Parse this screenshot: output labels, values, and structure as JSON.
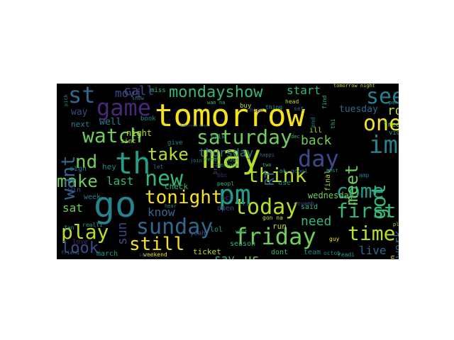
{
  "palette": {
    "yellow": "#f5e21c",
    "lime": "#b5de2b",
    "green": "#6ece58",
    "seagreen": "#35b779",
    "teal": "#1f9e89",
    "cyan": "#26828e",
    "blue": "#31688e",
    "indigo": "#3e4989",
    "purple": "#482878",
    "violet": "#440154"
  },
  "words": [
    {
      "text": "tomorrow",
      "color": "yellow"
    },
    {
      "text": "may",
      "color": "lime"
    },
    {
      "text": "go",
      "color": "cyan"
    },
    {
      "text": "th",
      "color": "teal"
    },
    {
      "text": "friday",
      "color": "green"
    },
    {
      "text": "saturday",
      "color": "green"
    },
    {
      "text": "sunday",
      "color": "blue"
    },
    {
      "text": "watch",
      "color": "green"
    },
    {
      "text": "day",
      "color": "indigo"
    },
    {
      "text": "game",
      "color": "purple"
    },
    {
      "text": "st",
      "color": "blue"
    },
    {
      "text": "tonight",
      "color": "yellow"
    },
    {
      "text": "today",
      "color": "lime"
    },
    {
      "text": "pm",
      "color": "teal"
    },
    {
      "text": "time",
      "color": "lime"
    },
    {
      "text": "play",
      "color": "lime"
    },
    {
      "text": "first",
      "color": "seagreen"
    },
    {
      "text": "come",
      "color": "teal"
    },
    {
      "text": "think",
      "color": "lime"
    },
    {
      "text": "new",
      "color": "seagreen"
    },
    {
      "text": "still",
      "color": "yellow"
    },
    {
      "text": "mondayshow",
      "color": "seagreen"
    },
    {
      "text": "see",
      "color": "cyan"
    },
    {
      "text": "one",
      "color": "yellow"
    },
    {
      "text": "im",
      "color": "cyan"
    },
    {
      "text": "got",
      "color": "seagreen"
    },
    {
      "text": "meet",
      "color": "green"
    },
    {
      "text": "take",
      "color": "lime"
    },
    {
      "text": "make",
      "color": "green"
    },
    {
      "text": "nd",
      "color": "green"
    },
    {
      "text": "want",
      "color": "blue"
    },
    {
      "text": "look",
      "color": "indigo"
    },
    {
      "text": "rd",
      "color": "lime"
    },
    {
      "text": "back",
      "color": "green"
    },
    {
      "text": "thursday",
      "color": "cyan"
    },
    {
      "text": "know",
      "color": "blue"
    },
    {
      "text": "need",
      "color": "seagreen"
    },
    {
      "text": "say",
      "color": "seagreen"
    },
    {
      "text": "us",
      "color": "green"
    },
    {
      "text": "live",
      "color": "blue"
    },
    {
      "text": "last",
      "color": "seagreen"
    },
    {
      "text": "call",
      "color": "indigo"
    },
    {
      "text": "movi",
      "color": "indigo"
    },
    {
      "text": "start",
      "color": "seagreen"
    },
    {
      "text": "work",
      "color": "blue"
    },
    {
      "text": "sat",
      "color": "green"
    },
    {
      "text": "tuesday",
      "color": "blue"
    },
    {
      "text": "wednesday",
      "color": "green"
    },
    {
      "text": "night",
      "color": "lime"
    },
    {
      "text": "well",
      "color": "cyan"
    },
    {
      "text": "next",
      "color": "cyan"
    },
    {
      "text": "sun",
      "color": "indigo"
    },
    {
      "text": "way",
      "color": "indigo"
    },
    {
      "text": "RT",
      "color": "blue"
    },
    {
      "text": "ticket",
      "color": "lime"
    },
    {
      "text": "season",
      "color": "seagreen"
    },
    {
      "text": "dont",
      "color": "seagreen"
    },
    {
      "text": "team",
      "color": "cyan"
    },
    {
      "text": "said",
      "color": "seagreen"
    },
    {
      "text": "ask",
      "color": "cyan"
    },
    {
      "text": "free",
      "color": "green"
    },
    {
      "text": "video",
      "color": "teal"
    },
    {
      "text": "hey",
      "color": "cyan"
    },
    {
      "text": "win",
      "color": "indigo"
    },
    {
      "text": "week",
      "color": "cyan"
    },
    {
      "text": "march",
      "color": "teal"
    },
    {
      "text": "check",
      "color": "seagreen"
    },
    {
      "text": "sign",
      "color": "cyan"
    },
    {
      "text": "final",
      "color": "lime"
    },
    {
      "text": "even",
      "color": "yellow"
    },
    {
      "text": "weekend",
      "color": "yellow"
    },
    {
      "text": "lol",
      "color": "teal"
    },
    {
      "text": "open",
      "color": "indigo"
    },
    {
      "text": "run",
      "color": "lime"
    },
    {
      "text": "book",
      "color": "cyan"
    },
    {
      "text": "miss",
      "color": "seagreen"
    },
    {
      "text": "give",
      "color": "cyan"
    },
    {
      "text": "sinc",
      "color": "lime"
    },
    {
      "text": "talk",
      "color": "cyan"
    },
    {
      "text": "buy",
      "color": "lime"
    },
    {
      "text": "thing",
      "color": "teal"
    },
    {
      "text": "head",
      "color": "lime"
    },
    {
      "text": "set",
      "color": "blue"
    },
    {
      "text": "tomorrow night",
      "color": "lime"
    },
    {
      "text": "wan na",
      "color": "seagreen"
    },
    {
      "text": "gon na",
      "color": "lime"
    },
    {
      "text": "use",
      "color": "cyan"
    },
    {
      "text": "oct",
      "color": "indigo"
    },
    {
      "text": "tri",
      "color": "cyan"
    },
    {
      "text": "yeah",
      "color": "indigo"
    },
    {
      "text": "peopl",
      "color": "seagreen"
    },
    {
      "text": "hope",
      "color": "indigo"
    },
    {
      "text": "ill",
      "color": "lime"
    },
    {
      "text": "guy",
      "color": "yellow"
    },
    {
      "text": "octob",
      "color": "cyan"
    },
    {
      "text": "readi",
      "color": "teal"
    },
    {
      "text": "love",
      "color": "purple"
    },
    {
      "text": "let",
      "color": "blue"
    },
    {
      "text": "find",
      "color": "seagreen"
    },
    {
      "text": "end",
      "color": "cyan"
    },
    {
      "text": "thi",
      "color": "seagreen"
    },
    {
      "text": "bring",
      "color": "indigo"
    },
    {
      "text": "ok",
      "color": "seagreen"
    },
    {
      "text": "wait",
      "color": "teal"
    },
    {
      "text": "novemb",
      "color": "indigo"
    },
    {
      "text": "parti",
      "color": "teal"
    },
    {
      "text": "amp",
      "color": "cyan"
    },
    {
      "text": "googl",
      "color": "blue"
    },
    {
      "text": "best",
      "color": "teal"
    },
    {
      "text": "place",
      "color": "lime"
    },
    {
      "text": "realli",
      "color": "teal"
    },
    {
      "text": "pick",
      "color": "cyan"
    },
    {
      "text": "tomorrow morn",
      "color": "blue"
    },
    {
      "text": "event",
      "color": "seagreen"
    },
    {
      "text": "perform",
      "color": "teal"
    },
    {
      "text": "hour",
      "color": "seagreen"
    },
    {
      "text": "friend",
      "color": "blue"
    },
    {
      "text": "school",
      "color": "indigo"
    },
    {
      "text": "two",
      "color": "seagreen"
    },
    {
      "text": "fan",
      "color": "teal"
    },
    {
      "text": "ium",
      "color": "cyan"
    },
    {
      "text": "join",
      "color": "cyan"
    },
    {
      "text": "hear",
      "color": "cyan"
    },
    {
      "text": "dec",
      "color": "seagreen"
    },
    {
      "text": "bbc",
      "color": "purple"
    },
    {
      "text": "happi",
      "color": "blue"
    },
    {
      "text": "show",
      "color": "cyan"
    }
  ]
}
